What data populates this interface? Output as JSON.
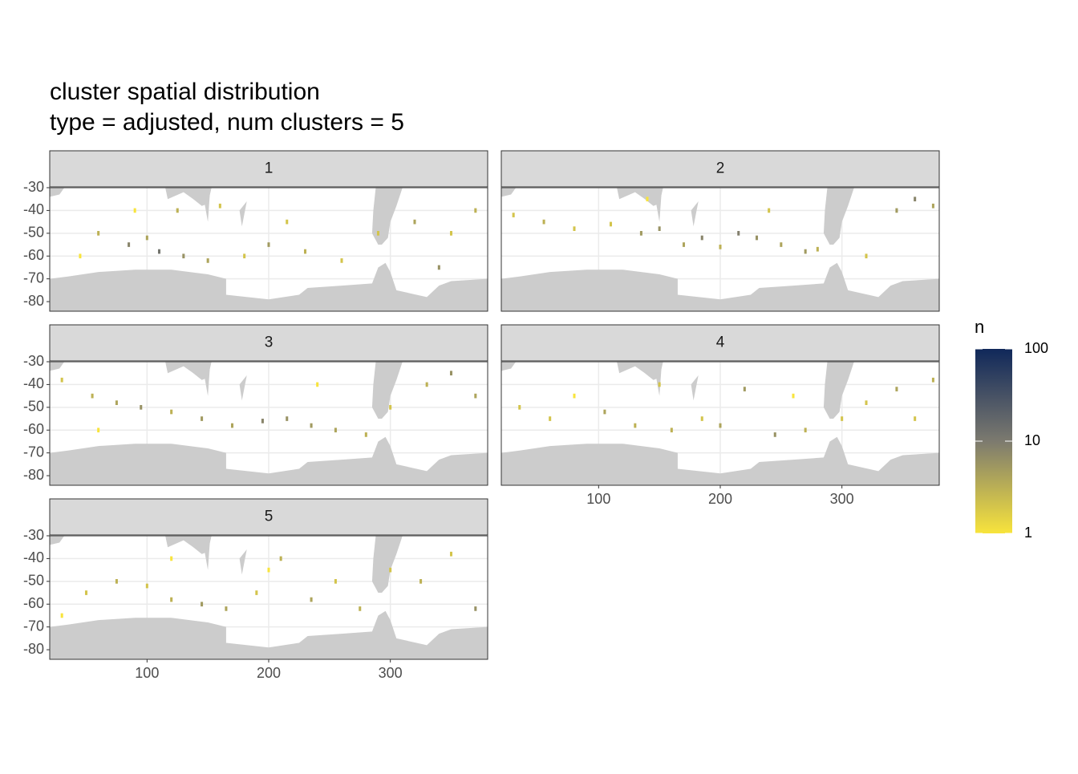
{
  "chart_data": {
    "type": "tile",
    "title": "cluster spatial distribution",
    "subtitle": "type = adjusted, num clusters = 5",
    "xlim": [
      20,
      380
    ],
    "ylim": [
      -84.2,
      -30
    ],
    "xticks": [
      100,
      200,
      300
    ],
    "yticks": [
      -30,
      -40,
      -50,
      -60,
      -70,
      -80
    ],
    "grid": true,
    "legend_title": "n",
    "color_scale": {
      "log": true,
      "lim": [
        1,
        100
      ],
      "ticks": [
        1,
        10,
        100
      ],
      "colors": [
        "#f8e43c",
        "#7c7a6f",
        "#10285a"
      ]
    },
    "facets": [
      {
        "name": "1",
        "x": [
          45,
          60,
          85,
          100,
          110,
          125,
          130,
          150,
          160,
          180,
          200,
          215,
          230,
          260,
          290,
          320,
          340,
          350,
          370,
          90
        ],
        "y": [
          -60,
          -50,
          -55,
          -52,
          -58,
          -40,
          -60,
          -62,
          -38,
          -60,
          -55,
          -45,
          -58,
          -62,
          -50,
          -45,
          -65,
          -50,
          -40,
          -40
        ],
        "values": [
          1,
          3,
          8,
          4,
          12,
          3,
          6,
          4,
          2,
          2,
          5,
          2,
          3,
          2,
          2,
          4,
          6,
          2,
          3,
          1
        ]
      },
      {
        "name": "2",
        "x": [
          30,
          55,
          80,
          110,
          135,
          150,
          170,
          185,
          200,
          215,
          230,
          250,
          270,
          280,
          320,
          345,
          360,
          375,
          240,
          140
        ],
        "y": [
          -42,
          -45,
          -48,
          -46,
          -50,
          -48,
          -55,
          -52,
          -56,
          -50,
          -52,
          -55,
          -58,
          -57,
          -60,
          -40,
          -35,
          -38,
          -40,
          -35
        ],
        "values": [
          2,
          3,
          2,
          2,
          5,
          6,
          4,
          8,
          3,
          9,
          6,
          4,
          5,
          3,
          2,
          5,
          8,
          4,
          2,
          1
        ]
      },
      {
        "name": "3",
        "x": [
          30,
          55,
          75,
          95,
          120,
          145,
          170,
          195,
          215,
          235,
          255,
          280,
          300,
          330,
          350,
          370,
          240,
          60
        ],
        "y": [
          -38,
          -45,
          -48,
          -50,
          -52,
          -55,
          -58,
          -56,
          -55,
          -58,
          -60,
          -62,
          -50,
          -40,
          -35,
          -45,
          -40,
          -60
        ],
        "values": [
          2,
          3,
          4,
          6,
          3,
          5,
          4,
          8,
          6,
          5,
          4,
          3,
          2,
          3,
          6,
          4,
          1,
          1
        ]
      },
      {
        "name": "4",
        "x": [
          35,
          60,
          80,
          105,
          130,
          160,
          185,
          200,
          220,
          245,
          270,
          300,
          320,
          345,
          360,
          375,
          150,
          260
        ],
        "y": [
          -50,
          -55,
          -45,
          -52,
          -58,
          -60,
          -55,
          -58,
          -42,
          -62,
          -60,
          -55,
          -48,
          -42,
          -55,
          -38,
          -40,
          -45
        ],
        "values": [
          2,
          2,
          1,
          4,
          3,
          3,
          2,
          4,
          5,
          6,
          3,
          2,
          2,
          4,
          2,
          3,
          2,
          1
        ]
      },
      {
        "name": "5",
        "x": [
          30,
          50,
          75,
          100,
          120,
          145,
          165,
          190,
          210,
          235,
          255,
          275,
          300,
          325,
          350,
          370,
          200,
          120
        ],
        "y": [
          -65,
          -55,
          -50,
          -52,
          -58,
          -60,
          -62,
          -55,
          -40,
          -58,
          -50,
          -62,
          -45,
          -50,
          -38,
          -62,
          -45,
          -40
        ],
        "values": [
          1,
          2,
          3,
          2,
          3,
          5,
          4,
          2,
          3,
          4,
          2,
          3,
          2,
          3,
          2,
          6,
          1,
          1
        ]
      }
    ]
  }
}
